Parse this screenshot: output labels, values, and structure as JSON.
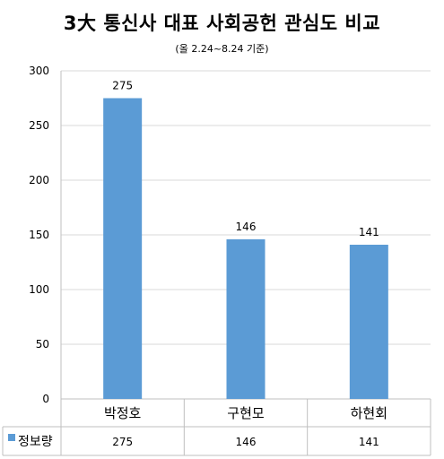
{
  "chart_data": {
    "type": "bar",
    "title": "3大 통신사 대표 사회공헌 관심도 비교",
    "subtitle": "(올 2.24~8.24 기준)",
    "categories": [
      "박정호",
      "구현모",
      "하현회"
    ],
    "series": [
      {
        "name": "정보량",
        "values": [
          275,
          146,
          141
        ],
        "color": "#5B9BD5"
      }
    ],
    "ylim": [
      0,
      300
    ],
    "yticks": [
      0,
      50,
      100,
      150,
      200,
      250,
      300
    ],
    "data_labels": true,
    "grid": true,
    "data_table": true,
    "legend": "data-table"
  }
}
